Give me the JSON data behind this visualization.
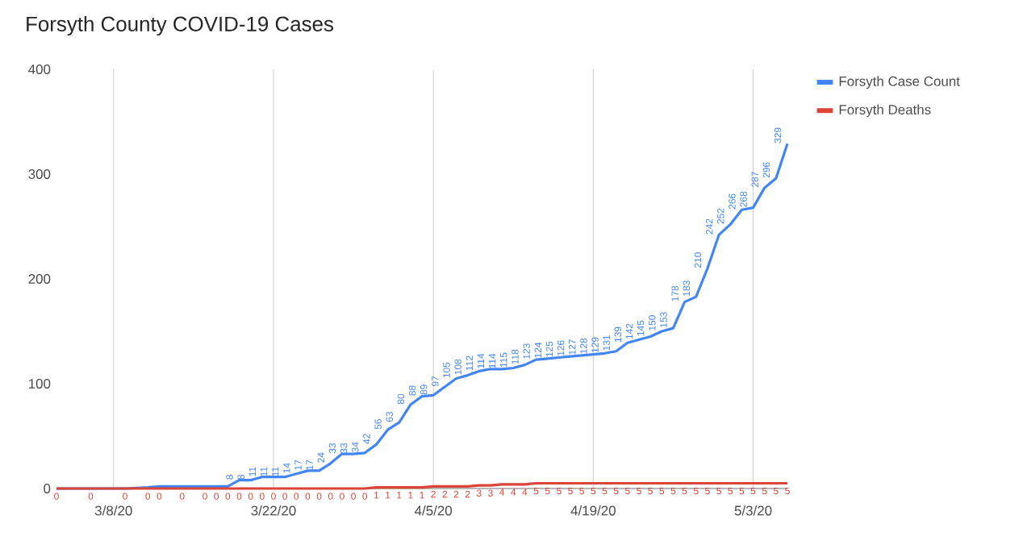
{
  "chart_data": {
    "type": "line",
    "title": "Forsyth County COVID-19 Cases",
    "x": [
      "2020-03-03",
      "2020-03-06",
      "2020-03-09",
      "2020-03-11",
      "2020-03-12",
      "2020-03-14",
      "2020-03-16",
      "2020-03-17",
      "2020-03-18",
      "2020-03-19",
      "2020-03-20",
      "2020-03-21",
      "2020-03-22",
      "2020-03-23",
      "2020-03-24",
      "2020-03-25",
      "2020-03-26",
      "2020-03-27",
      "2020-03-28",
      "2020-03-29",
      "2020-03-30",
      "2020-03-31",
      "2020-04-01",
      "2020-04-02",
      "2020-04-03",
      "2020-04-04",
      "2020-04-05",
      "2020-04-06",
      "2020-04-07",
      "2020-04-08",
      "2020-04-09",
      "2020-04-10",
      "2020-04-11",
      "2020-04-12",
      "2020-04-13",
      "2020-04-14",
      "2020-04-15",
      "2020-04-16",
      "2020-04-17",
      "2020-04-18",
      "2020-04-19",
      "2020-04-20",
      "2020-04-21",
      "2020-04-22",
      "2020-04-23",
      "2020-04-24",
      "2020-04-25",
      "2020-04-26",
      "2020-04-27",
      "2020-04-28",
      "2020-04-29",
      "2020-04-30",
      "2020-05-01",
      "2020-05-02",
      "2020-05-03",
      "2020-05-04",
      "2020-05-05",
      "2020-05-06"
    ],
    "series": [
      {
        "name": "Forsyth Case Count",
        "color": "#4285f4",
        "values": [
          0,
          0,
          0,
          1,
          2,
          2,
          2,
          2,
          2,
          8,
          8,
          11,
          11,
          11,
          14,
          17,
          17,
          24,
          33,
          33,
          34,
          42,
          56,
          63,
          80,
          88,
          89,
          97,
          105,
          108,
          112,
          114,
          114,
          115,
          118,
          123,
          124,
          125,
          126,
          127,
          128,
          129,
          131,
          139,
          142,
          145,
          150,
          153,
          178,
          183,
          210,
          242,
          252,
          266,
          268,
          287,
          296,
          329
        ],
        "value_labels": [
          null,
          null,
          null,
          null,
          null,
          null,
          null,
          null,
          null,
          "8",
          "8",
          "11",
          "11",
          "11",
          "14",
          "17",
          "17",
          "24",
          "33",
          "33",
          "34",
          "42",
          "56",
          "63",
          "80",
          "88",
          "89",
          "97",
          "105",
          "108",
          "112",
          "114",
          "114",
          "115",
          "118",
          "123",
          "124",
          "125",
          "126",
          "127",
          "128",
          "129",
          "131",
          "139",
          "142",
          "145",
          "150",
          "153",
          "178",
          "183",
          "210",
          "242",
          "252",
          "266",
          "268",
          "287",
          "296",
          "329"
        ]
      },
      {
        "name": "Forsyth Deaths",
        "color": "#db4437",
        "values": [
          0,
          0,
          0,
          0,
          0,
          0,
          0,
          0,
          0,
          0,
          0,
          0,
          0,
          0,
          0,
          0,
          0,
          0,
          0,
          0,
          0,
          1,
          1,
          1,
          1,
          1,
          2,
          2,
          2,
          2,
          3,
          3,
          4,
          4,
          4,
          5,
          5,
          5,
          5,
          5,
          5,
          5,
          5,
          5,
          5,
          5,
          5,
          5,
          5,
          5,
          5,
          5,
          5,
          5,
          5,
          5,
          5,
          5
        ],
        "value_labels": [
          "0",
          "0",
          "0",
          "0",
          "0",
          "0",
          "0",
          "0",
          "0",
          "0",
          "0",
          "0",
          "0",
          "0",
          "0",
          "0",
          "0",
          "0",
          "0",
          "0",
          "0",
          "1",
          "1",
          "1",
          "1",
          "1",
          "2",
          "2",
          "2",
          "2",
          "3",
          "3",
          "4",
          "4",
          "4",
          "5",
          "5",
          "5",
          "5",
          "5",
          "5",
          "5",
          "5",
          "5",
          "5",
          "5",
          "5",
          "5",
          "5",
          "5",
          "5",
          "5",
          "5",
          "5",
          "5",
          "5",
          "5",
          "5"
        ]
      }
    ],
    "xlim": [
      "2020-03-03",
      "2020-05-06"
    ],
    "xticks": [
      {
        "value": "2020-03-08",
        "label": "3/8/20"
      },
      {
        "value": "2020-03-22",
        "label": "3/22/20"
      },
      {
        "value": "2020-04-05",
        "label": "4/5/20"
      },
      {
        "value": "2020-04-19",
        "label": "4/19/20"
      },
      {
        "value": "2020-05-03",
        "label": "5/3/20"
      }
    ],
    "ylim": [
      0,
      400
    ],
    "yticks": [
      0,
      100,
      200,
      300,
      400
    ],
    "grid": "x",
    "legend": "top right",
    "marker": "none",
    "line_style": "solid"
  }
}
